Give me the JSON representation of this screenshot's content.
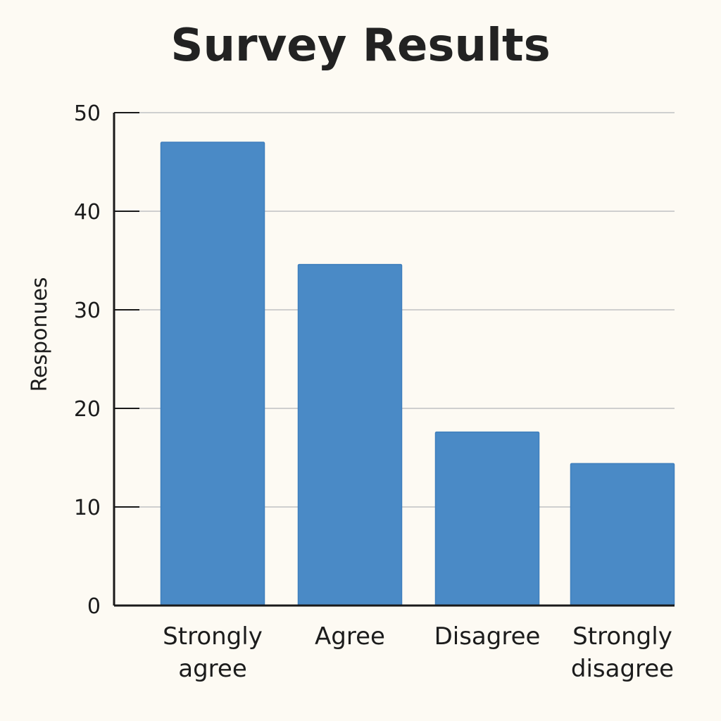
{
  "chart_data": {
    "type": "bar",
    "title": "Survey Results",
    "xlabel": "",
    "ylabel": "Responues",
    "categories": [
      [
        "Strongly",
        "agree"
      ],
      [
        "Agree"
      ],
      [
        "Disagree"
      ],
      [
        "Strongly",
        "disagree"
      ]
    ],
    "values": [
      47,
      34.6,
      17.6,
      14.4
    ],
    "ylim": [
      0,
      50
    ],
    "yticks": [
      "0",
      "10",
      "20",
      "30",
      "40",
      "50"
    ],
    "grid": true,
    "bar_color": "#4a8ac6",
    "grid_color": "#cfcfcf",
    "axis_color": "#1a1a1a"
  }
}
